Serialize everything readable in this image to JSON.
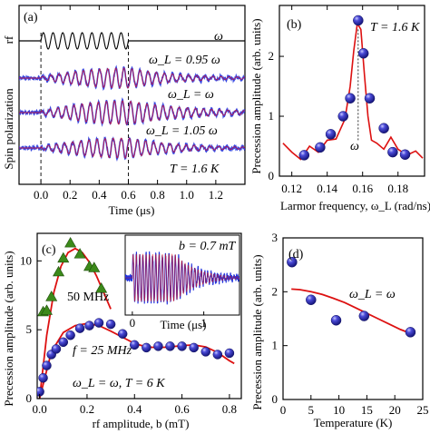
{
  "chart_data": [
    {
      "panel": "(a)",
      "type": "line",
      "xlabel": "Time (μs)",
      "ylabel": "Spin polarization",
      "xlim": [
        -0.15,
        1.4
      ],
      "xticks": [
        "0.0",
        "0.2",
        "0.4",
        "0.6",
        "0.8",
        "1.0",
        "1.2"
      ],
      "xtick_values": [
        0.0,
        0.2,
        0.4,
        0.6,
        0.8,
        1.0,
        1.2
      ],
      "rf_label": "rf",
      "rf_freq_label": "ω",
      "rf_on_interval": [
        0.0,
        0.6
      ],
      "series_labels": [
        "ω_L = 0.95 ω",
        "ω_L = ω",
        "ω_L = 1.05 ω"
      ],
      "temperature_label": "T = 1.6 K",
      "data_color": "#2233dd",
      "fit_color": "#cc1133"
    },
    {
      "panel": "(b)",
      "type": "scatter",
      "xlabel": "Larmor frequency, ω_L (rad/ns)",
      "ylabel": "Precession amplitude (arb. units)",
      "xlim": [
        0.113,
        0.195
      ],
      "ylim": [
        0.0,
        2.85
      ],
      "xticks": [
        "0.12",
        "0.14",
        "0.16",
        "0.18"
      ],
      "xtick_values": [
        0.12,
        0.14,
        0.16,
        0.18
      ],
      "yticks": [
        "0",
        "1",
        "2"
      ],
      "ytick_values": [
        0,
        1,
        2
      ],
      "temperature_label": "T = 1.6 K",
      "center_label": "ω",
      "x": [
        0.127,
        0.136,
        0.142,
        0.149,
        0.153,
        0.1575,
        0.1605,
        0.164,
        0.172,
        0.177,
        0.184
      ],
      "y": [
        0.35,
        0.48,
        0.7,
        1.0,
        1.3,
        2.6,
        2.05,
        1.3,
        0.8,
        0.4,
        0.36
      ],
      "fit": {
        "x": [
          0.115,
          0.12,
          0.125,
          0.13,
          0.135,
          0.14,
          0.145,
          0.15,
          0.153,
          0.155,
          0.157,
          0.159,
          0.161,
          0.163,
          0.165,
          0.168,
          0.172,
          0.176,
          0.18,
          0.185,
          0.19,
          0.194
        ],
        "y": [
          0.55,
          0.4,
          0.28,
          0.5,
          0.4,
          0.6,
          0.62,
          0.95,
          1.5,
          2.1,
          2.55,
          2.45,
          1.7,
          1.0,
          0.6,
          0.55,
          0.45,
          0.65,
          0.45,
          0.35,
          0.42,
          0.3
        ]
      },
      "marker_color": "#2a2ab0",
      "fit_color": "#dd1111"
    },
    {
      "panel": "(c)",
      "type": "scatter",
      "xlabel": "rf amplitude, b (mT)",
      "ylabel": "Precession amplitude (arb. units)",
      "xlim": [
        -0.01,
        0.85
      ],
      "ylim": [
        0.0,
        12.0
      ],
      "xticks": [
        "0.0",
        "0.2",
        "0.4",
        "0.6",
        "0.8"
      ],
      "xtick_values": [
        0.0,
        0.2,
        0.4,
        0.6,
        0.8
      ],
      "yticks": [
        "0",
        "5",
        "10"
      ],
      "ytick_values": [
        0,
        5,
        10
      ],
      "series": [
        {
          "name": "f = 25 MHz",
          "marker": "sphere",
          "x": [
            0.0,
            0.015,
            0.03,
            0.05,
            0.07,
            0.1,
            0.13,
            0.17,
            0.21,
            0.25,
            0.3,
            0.35,
            0.4,
            0.45,
            0.5,
            0.55,
            0.6,
            0.65,
            0.7,
            0.75,
            0.8
          ],
          "y": [
            0.5,
            1.5,
            2.4,
            3.2,
            3.6,
            4.1,
            4.6,
            5.1,
            5.3,
            5.5,
            5.4,
            4.7,
            3.9,
            3.7,
            3.8,
            3.8,
            3.8,
            3.7,
            3.4,
            3.2,
            3.3
          ],
          "fit": {
            "x": [
              0.0,
              0.05,
              0.1,
              0.15,
              0.2,
              0.25,
              0.3,
              0.35,
              0.4,
              0.45,
              0.5,
              0.55,
              0.6,
              0.65,
              0.7,
              0.75,
              0.8,
              0.82
            ],
            "y": [
              0.0,
              3.4,
              4.8,
              5.3,
              5.45,
              5.3,
              4.9,
              4.45,
              4.0,
              3.75,
              3.7,
              3.75,
              3.85,
              3.9,
              3.75,
              3.35,
              2.75,
              2.55
            ]
          }
        },
        {
          "name": "50 MHz",
          "marker": "triangle",
          "x": [
            0.015,
            0.03,
            0.05,
            0.08,
            0.1,
            0.13,
            0.17,
            0.21,
            0.23,
            0.26
          ],
          "y": [
            6.3,
            6.4,
            7.4,
            9.2,
            10.2,
            11.3,
            10.5,
            9.6,
            9.5,
            8.0
          ],
          "fit": {
            "x": [
              0.0,
              0.03,
              0.06,
              0.09,
              0.12,
              0.15,
              0.18,
              0.21,
              0.24,
              0.27,
              0.3
            ],
            "y": [
              0.0,
              4.6,
              7.7,
              9.6,
              10.6,
              10.9,
              10.6,
              9.9,
              8.9,
              7.7,
              6.5
            ]
          }
        }
      ],
      "condition_label": "ω_L = ω,   T = 6 K",
      "marker_color": "#2a2ab0",
      "triangle_color": "#3c8a1a",
      "fit_color": "#dd1111",
      "inset": {
        "b_label": "b = 0.7 mT",
        "xlabel": "Time (μs)",
        "xlim": [
          -0.1,
          1.5
        ],
        "xticks": [
          "0",
          "1"
        ],
        "xtick_values": [
          0,
          1
        ]
      }
    },
    {
      "panel": "(d)",
      "type": "scatter",
      "xlabel": "Temperature (K)",
      "ylabel": "Precession amplitude (arb. units)",
      "xlim": [
        0,
        25
      ],
      "ylim": [
        0.0,
        3.0
      ],
      "xticks": [
        "0",
        "5",
        "10",
        "15",
        "20",
        "25"
      ],
      "xtick_values": [
        0,
        5,
        10,
        15,
        20,
        25
      ],
      "yticks": [
        "0",
        "1",
        "2",
        "3"
      ],
      "ytick_values": [
        0,
        1,
        2,
        3
      ],
      "condition_label": "ω_L = ω",
      "x": [
        1.6,
        5.0,
        9.5,
        14.5,
        22.8
      ],
      "y": [
        2.55,
        1.85,
        1.47,
        1.55,
        1.25
      ],
      "fit": {
        "x": [
          1.5,
          3,
          5,
          7,
          9,
          11,
          13,
          15,
          17,
          19,
          21,
          23
        ],
        "y": [
          2.05,
          2.04,
          2.0,
          1.95,
          1.88,
          1.8,
          1.7,
          1.6,
          1.5,
          1.4,
          1.3,
          1.22
        ]
      },
      "marker_color": "#2a2ab0",
      "fit_color": "#dd1111"
    }
  ]
}
